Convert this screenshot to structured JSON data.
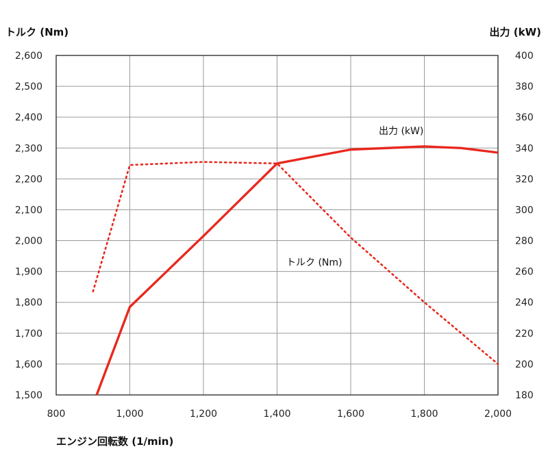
{
  "chart_data": {
    "type": "line",
    "xlabel": "エンジン回転数 (1/min)",
    "ylabel_left": "トルク (Nm)",
    "ylabel_right": "出力 (kW)",
    "xlim": [
      800,
      2000
    ],
    "ylim_left": [
      1500,
      2600
    ],
    "ylim_right": [
      180,
      400
    ],
    "x_ticks": [
      800,
      1000,
      1200,
      1400,
      1600,
      1800,
      2000
    ],
    "x_tick_labels": [
      "800",
      "1,000",
      "1,200",
      "1,400",
      "1,600",
      "1,800",
      "2,000"
    ],
    "y_left_ticks": [
      1500,
      1600,
      1700,
      1800,
      1900,
      2000,
      2100,
      2200,
      2300,
      2400,
      2500,
      2600
    ],
    "y_left_tick_labels": [
      "1,500",
      "1,600",
      "1,700",
      "1,800",
      "1,900",
      "2,000",
      "2,100",
      "2,200",
      "2,300",
      "2,400",
      "2,500",
      "2,600"
    ],
    "y_right_ticks": [
      180,
      200,
      220,
      240,
      260,
      280,
      300,
      320,
      340,
      360,
      380,
      400
    ],
    "y_right_tick_labels": [
      "180",
      "200",
      "220",
      "240",
      "260",
      "280",
      "300",
      "320",
      "340",
      "360",
      "380",
      "400"
    ],
    "grid": true,
    "series": [
      {
        "name": "出力 (kW)",
        "axis": "right",
        "style": "solid",
        "color": "#e8281e",
        "x": [
          910,
          1000,
          1200,
          1400,
          1600,
          1800,
          1900,
          2000
        ],
        "y": [
          180,
          237,
          283,
          330,
          339,
          341,
          340,
          337
        ]
      },
      {
        "name": "トルク (Nm)",
        "axis": "left",
        "style": "dotted",
        "color": "#e8281e",
        "x": [
          900,
          1000,
          1200,
          1400,
          1600,
          1800,
          2000
        ],
        "y": [
          1835,
          2245,
          2255,
          2250,
          2010,
          1800,
          1600
        ]
      }
    ]
  }
}
